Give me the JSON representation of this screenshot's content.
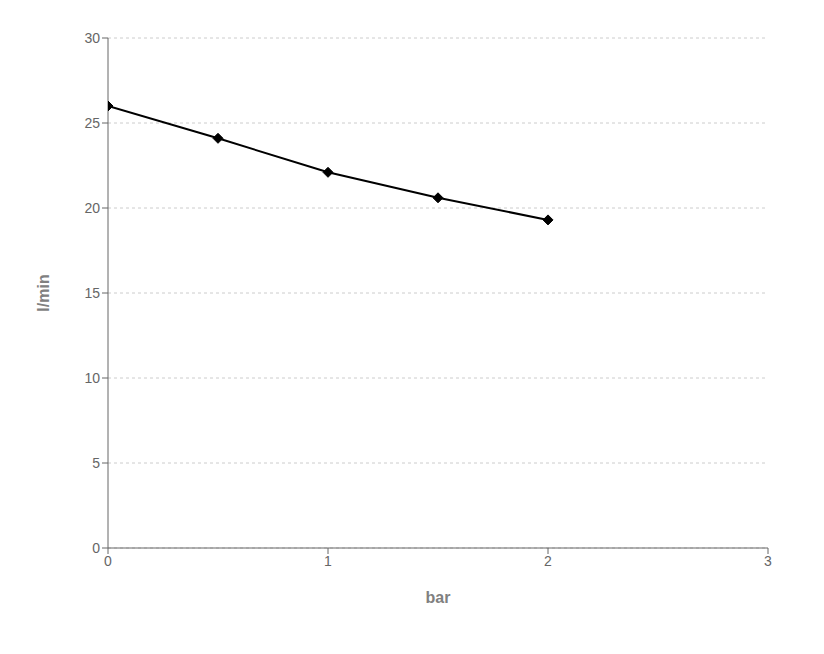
{
  "chart_data": {
    "type": "line",
    "xlabel": "bar",
    "ylabel": "l/min",
    "x": [
      0,
      0.5,
      1.0,
      1.5,
      2.0
    ],
    "values": [
      26.0,
      24.1,
      22.1,
      20.6,
      19.3
    ],
    "color": "#000000",
    "marker": "diamond",
    "xlim": [
      0,
      3
    ],
    "ylim": [
      0,
      30
    ],
    "xticks": [
      0,
      1,
      2,
      3
    ],
    "yticks": [
      0,
      5,
      10,
      15,
      20,
      25,
      30
    ],
    "grid": "y"
  }
}
